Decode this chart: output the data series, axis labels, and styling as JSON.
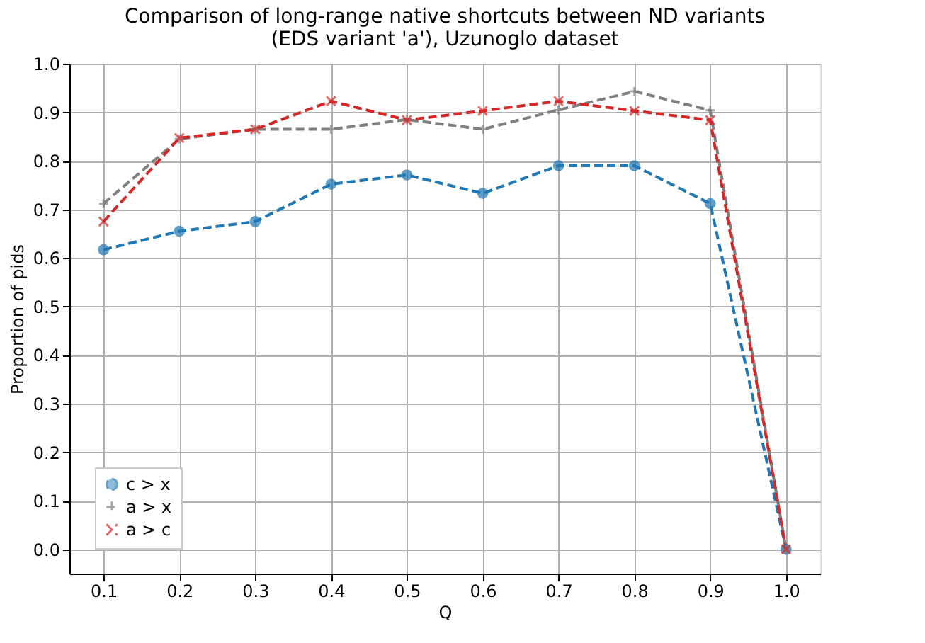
{
  "chart_data": {
    "type": "line",
    "title": "Comparison of long-range native shortcuts between ND variants\n(EDS variant 'a'), Uzunoglo dataset",
    "xlabel": "Q",
    "ylabel": "Proportion of pids",
    "x": [
      0.1,
      0.2,
      0.3,
      0.4,
      0.5,
      0.6,
      0.7,
      0.8,
      0.9,
      1.0
    ],
    "series": [
      {
        "name": "c > x",
        "color": "#1f77b4",
        "marker": "circle",
        "values": [
          0.617,
          0.655,
          0.675,
          0.752,
          0.771,
          0.733,
          0.79,
          0.79,
          0.712,
          0.0
        ]
      },
      {
        "name": "a > x",
        "color": "#7f7f7f",
        "marker": "cross",
        "values": [
          0.712,
          0.845,
          0.865,
          0.865,
          0.885,
          0.865,
          0.905,
          0.943,
          0.904,
          0.0
        ]
      },
      {
        "name": "a > c",
        "color": "#d62728",
        "marker": "x",
        "values": [
          0.675,
          0.847,
          0.865,
          0.923,
          0.884,
          0.903,
          0.923,
          0.903,
          0.884,
          0.0
        ]
      }
    ],
    "line_style": "dashed",
    "xlim": [
      0.055,
      1.045
    ],
    "xticks": [
      0.1,
      0.2,
      0.3,
      0.4,
      0.5,
      0.6,
      0.7,
      0.8,
      0.9,
      {
        "value": 1.0,
        "label": "1.0"
      }
    ],
    "ylim": [
      -0.05,
      1.0
    ],
    "yticks": [
      {
        "value": 0.0,
        "label": "0.0"
      },
      0.1,
      0.2,
      0.3,
      0.4,
      0.5,
      0.6,
      0.7,
      0.8,
      0.9,
      {
        "value": 1.0,
        "label": "1.0"
      }
    ],
    "grid": true,
    "legend": "bottom left"
  }
}
